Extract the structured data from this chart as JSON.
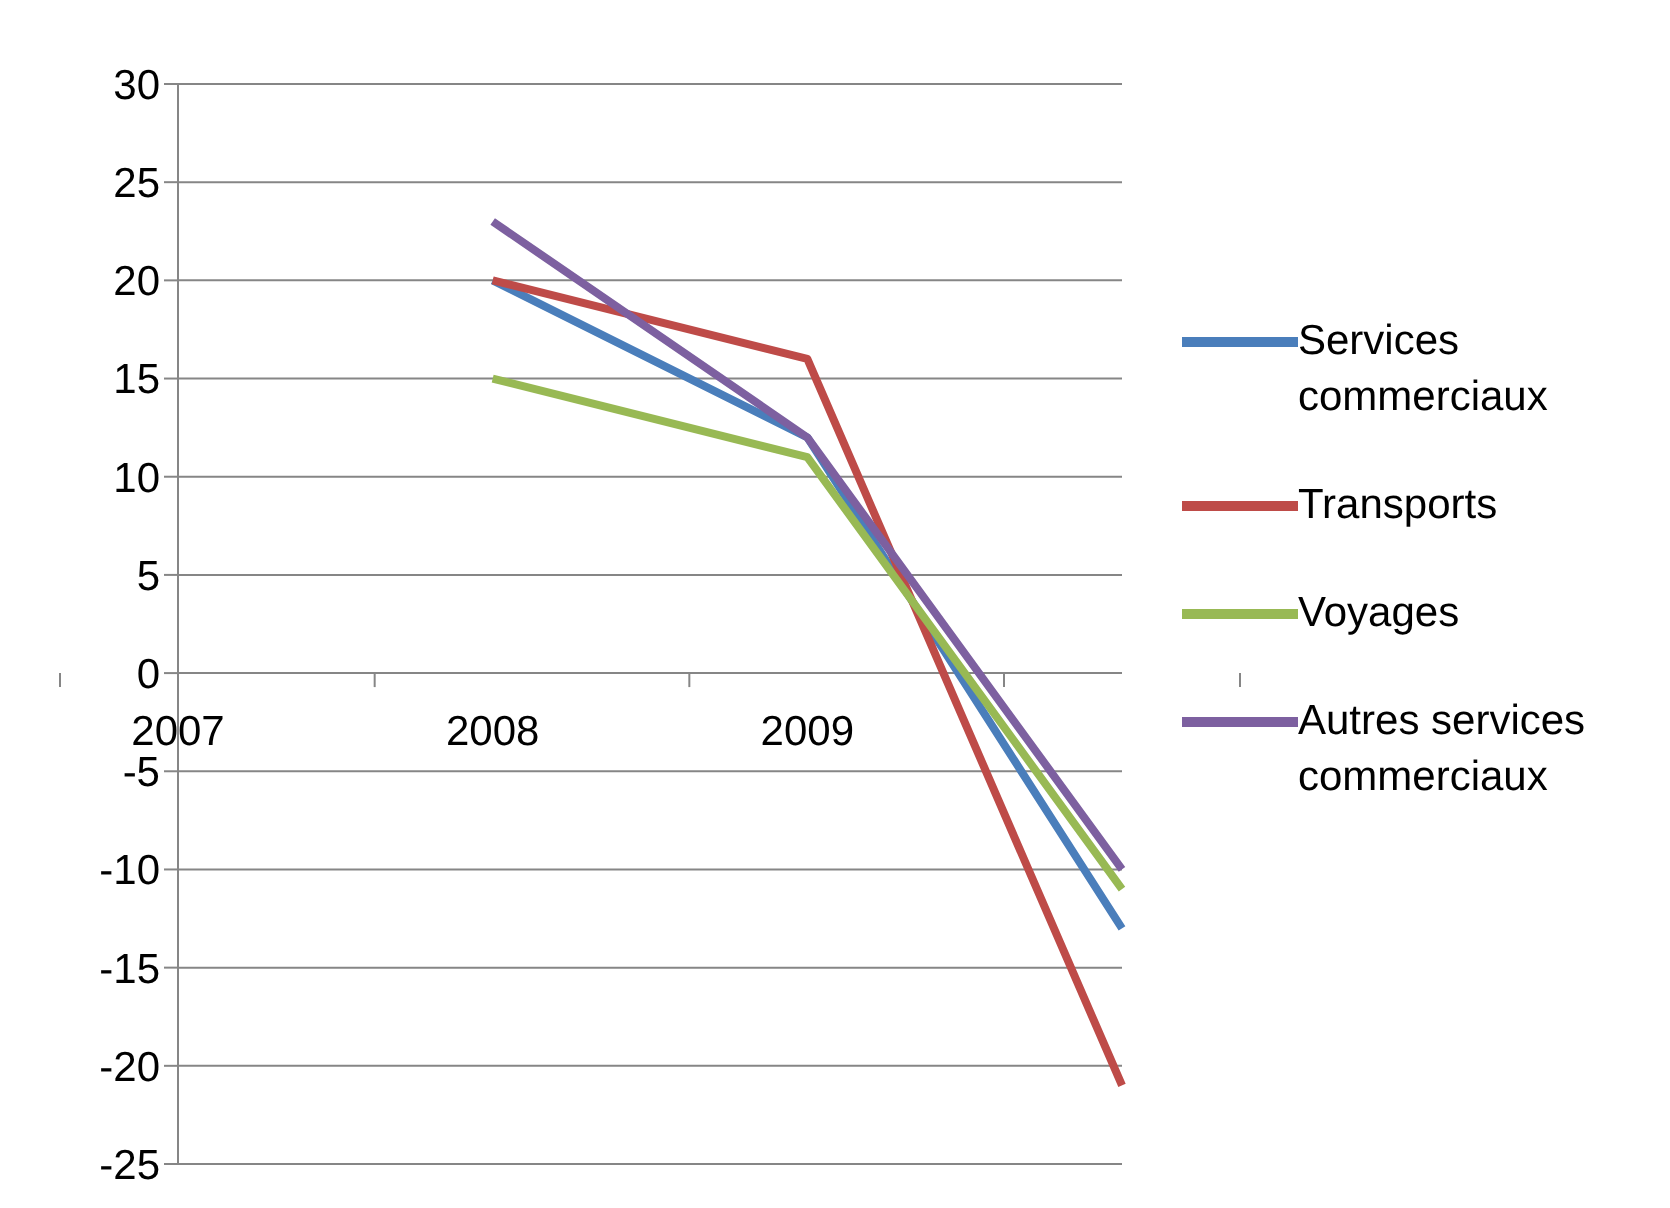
{
  "chart_data": {
    "type": "line",
    "categories": [
      "2007",
      "2008",
      "2009",
      null
    ],
    "series": [
      {
        "name": "Services commerciaux",
        "color": "#4a7ebb",
        "values": [
          null,
          20,
          12,
          -13
        ]
      },
      {
        "name": "Transports",
        "color": "#be4b48",
        "values": [
          null,
          20,
          16,
          -21
        ]
      },
      {
        "name": "Voyages",
        "color": "#98b954",
        "values": [
          null,
          15,
          11,
          -11
        ]
      },
      {
        "name": "Autres services commerciaux",
        "color": "#7d60a0",
        "values": [
          null,
          23,
          12,
          -10
        ]
      }
    ],
    "ylim": [
      -25,
      30
    ],
    "yticks": [
      -25,
      -20,
      -15,
      -10,
      -5,
      0,
      5,
      10,
      15,
      20,
      25,
      30
    ],
    "grid": "y",
    "legend": "right",
    "marker": "none",
    "line_style": "solid"
  }
}
